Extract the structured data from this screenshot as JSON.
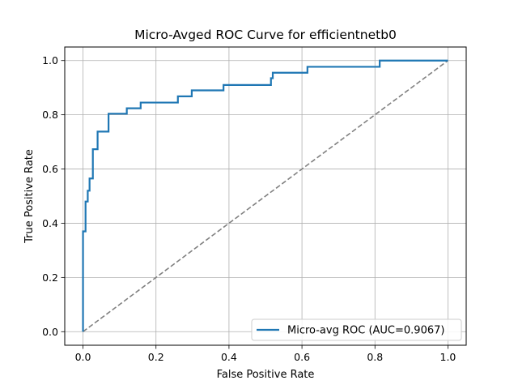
{
  "chart_data": {
    "type": "line",
    "title": "Micro-Avged ROC Curve for efficientnetb0",
    "xlabel": "False Positive Rate",
    "ylabel": "True Positive Rate",
    "xlim": [
      -0.05,
      1.05
    ],
    "ylim": [
      -0.05,
      1.05
    ],
    "xticks": [
      0.0,
      0.2,
      0.4,
      0.6,
      0.8,
      1.0
    ],
    "xtick_labels": [
      "0.0",
      "0.2",
      "0.4",
      "0.6",
      "0.8",
      "1.0"
    ],
    "yticks": [
      0.0,
      0.2,
      0.4,
      0.6,
      0.8,
      1.0
    ],
    "ytick_labels": [
      "0.0",
      "0.2",
      "0.4",
      "0.6",
      "0.8",
      "1.0"
    ],
    "grid": true,
    "legend_position": "lower-right",
    "series": [
      {
        "name": "Micro-avg ROC (AUC=0.9067)",
        "color": "#1f77b4",
        "style": "solid",
        "x": [
          0.0,
          0.0,
          0.003,
          0.003,
          0.007,
          0.007,
          0.013,
          0.013,
          0.018,
          0.018,
          0.027,
          0.027,
          0.04,
          0.04,
          0.07,
          0.07,
          0.12,
          0.12,
          0.158,
          0.158,
          0.26,
          0.26,
          0.298,
          0.298,
          0.385,
          0.385,
          0.515,
          0.515,
          0.52,
          0.52,
          0.615,
          0.615,
          0.813,
          0.813,
          1.0
        ],
        "y": [
          0.0,
          0.37,
          0.37,
          0.37,
          0.37,
          0.48,
          0.48,
          0.52,
          0.52,
          0.565,
          0.565,
          0.673,
          0.673,
          0.738,
          0.738,
          0.804,
          0.804,
          0.824,
          0.824,
          0.845,
          0.845,
          0.868,
          0.868,
          0.89,
          0.89,
          0.91,
          0.91,
          0.935,
          0.935,
          0.955,
          0.955,
          0.977,
          0.977,
          1.0,
          1.0
        ]
      },
      {
        "name": "",
        "color": "#808080",
        "style": "dashed",
        "x": [
          0.0,
          1.0
        ],
        "y": [
          0.0,
          1.0
        ]
      }
    ]
  }
}
